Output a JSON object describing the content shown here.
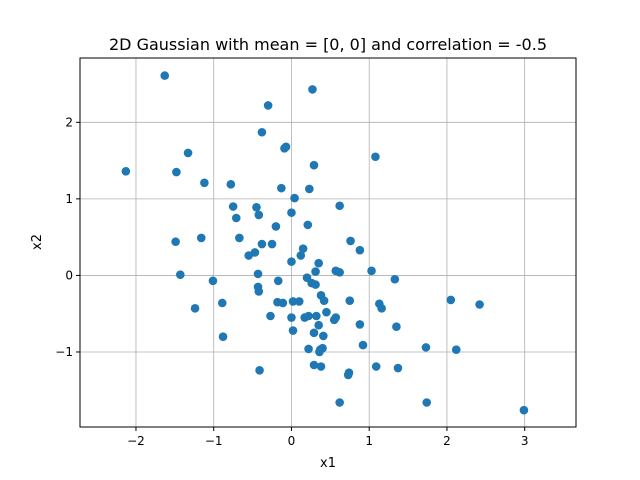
{
  "chart_data": {
    "type": "scatter",
    "title": "2D Gaussian with mean = [0, 0] and correlation = -0.5",
    "xlabel": "x1",
    "ylabel": "x2",
    "xlim": [
      -2.72,
      3.66
    ],
    "ylim": [
      -1.98,
      2.84
    ],
    "xticks": [
      -2,
      -1,
      0,
      1,
      2,
      3
    ],
    "yticks": [
      -1,
      0,
      1,
      2
    ],
    "xtick_labels": [
      "−2",
      "−1",
      "0",
      "1",
      "2",
      "3"
    ],
    "ytick_labels": [
      "−1",
      "0",
      "1",
      "2"
    ],
    "grid": true,
    "marker_color": "#1f77b4",
    "points": [
      [
        -1.63,
        2.61
      ],
      [
        0.27,
        2.43
      ],
      [
        -0.3,
        2.22
      ],
      [
        -1.33,
        1.6
      ],
      [
        -0.38,
        1.87
      ],
      [
        -0.07,
        1.68
      ],
      [
        -0.09,
        1.66
      ],
      [
        0.29,
        1.44
      ],
      [
        1.08,
        1.55
      ],
      [
        -2.13,
        1.36
      ],
      [
        -1.48,
        1.35
      ],
      [
        -1.12,
        1.21
      ],
      [
        -0.78,
        1.19
      ],
      [
        -0.13,
        1.14
      ],
      [
        0.23,
        1.13
      ],
      [
        0.04,
        1.01
      ],
      [
        -0.75,
        0.9
      ],
      [
        -0.45,
        0.89
      ],
      [
        0.62,
        0.91
      ],
      [
        -0.71,
        0.75
      ],
      [
        -0.42,
        0.79
      ],
      [
        0.0,
        0.82
      ],
      [
        0.21,
        0.66
      ],
      [
        -0.2,
        0.64
      ],
      [
        -1.16,
        0.49
      ],
      [
        -0.67,
        0.49
      ],
      [
        -1.49,
        0.44
      ],
      [
        -0.38,
        0.41
      ],
      [
        -0.25,
        0.41
      ],
      [
        0.76,
        0.45
      ],
      [
        0.15,
        0.35
      ],
      [
        0.88,
        0.33
      ],
      [
        -0.47,
        0.3
      ],
      [
        -0.55,
        0.26
      ],
      [
        0.12,
        0.26
      ],
      [
        0.0,
        0.18
      ],
      [
        0.35,
        0.16
      ],
      [
        0.31,
        0.05
      ],
      [
        0.57,
        0.06
      ],
      [
        0.62,
        0.04
      ],
      [
        1.03,
        0.06
      ],
      [
        -1.43,
        0.01
      ],
      [
        -1.01,
        -0.07
      ],
      [
        -0.43,
        0.02
      ],
      [
        0.2,
        -0.03
      ],
      [
        0.26,
        -0.1
      ],
      [
        0.31,
        -0.12
      ],
      [
        1.33,
        -0.05
      ],
      [
        -0.43,
        -0.15
      ],
      [
        -0.42,
        -0.21
      ],
      [
        -0.17,
        -0.07
      ],
      [
        0.38,
        -0.26
      ],
      [
        0.42,
        -0.33
      ],
      [
        -0.89,
        -0.36
      ],
      [
        -0.18,
        -0.35
      ],
      [
        -0.11,
        -0.36
      ],
      [
        0.02,
        -0.34
      ],
      [
        0.1,
        -0.34
      ],
      [
        0.75,
        -0.33
      ],
      [
        1.13,
        -0.37
      ],
      [
        1.16,
        -0.43
      ],
      [
        2.05,
        -0.32
      ],
      [
        2.42,
        -0.38
      ],
      [
        -1.24,
        -0.43
      ],
      [
        0.45,
        -0.48
      ],
      [
        -0.27,
        -0.53
      ],
      [
        0.0,
        -0.55
      ],
      [
        0.17,
        -0.55
      ],
      [
        0.22,
        -0.53
      ],
      [
        0.32,
        -0.53
      ],
      [
        0.55,
        -0.58
      ],
      [
        0.57,
        -0.55
      ],
      [
        0.35,
        -0.65
      ],
      [
        0.88,
        -0.64
      ],
      [
        1.35,
        -0.67
      ],
      [
        0.02,
        -0.72
      ],
      [
        0.29,
        -0.75
      ],
      [
        0.41,
        -0.79
      ],
      [
        -0.88,
        -0.8
      ],
      [
        0.22,
        -0.96
      ],
      [
        0.37,
        -0.97
      ],
      [
        0.4,
        -0.95
      ],
      [
        0.92,
        -0.91
      ],
      [
        1.73,
        -0.94
      ],
      [
        2.12,
        -0.97
      ],
      [
        0.36,
        -1.0
      ],
      [
        0.29,
        -1.17
      ],
      [
        0.38,
        -1.19
      ],
      [
        1.09,
        -1.19
      ],
      [
        1.37,
        -1.21
      ],
      [
        -0.41,
        -1.24
      ],
      [
        0.74,
        -1.27
      ],
      [
        0.73,
        -1.3
      ],
      [
        0.62,
        -1.66
      ],
      [
        1.74,
        -1.66
      ],
      [
        2.99,
        -1.76
      ]
    ]
  }
}
